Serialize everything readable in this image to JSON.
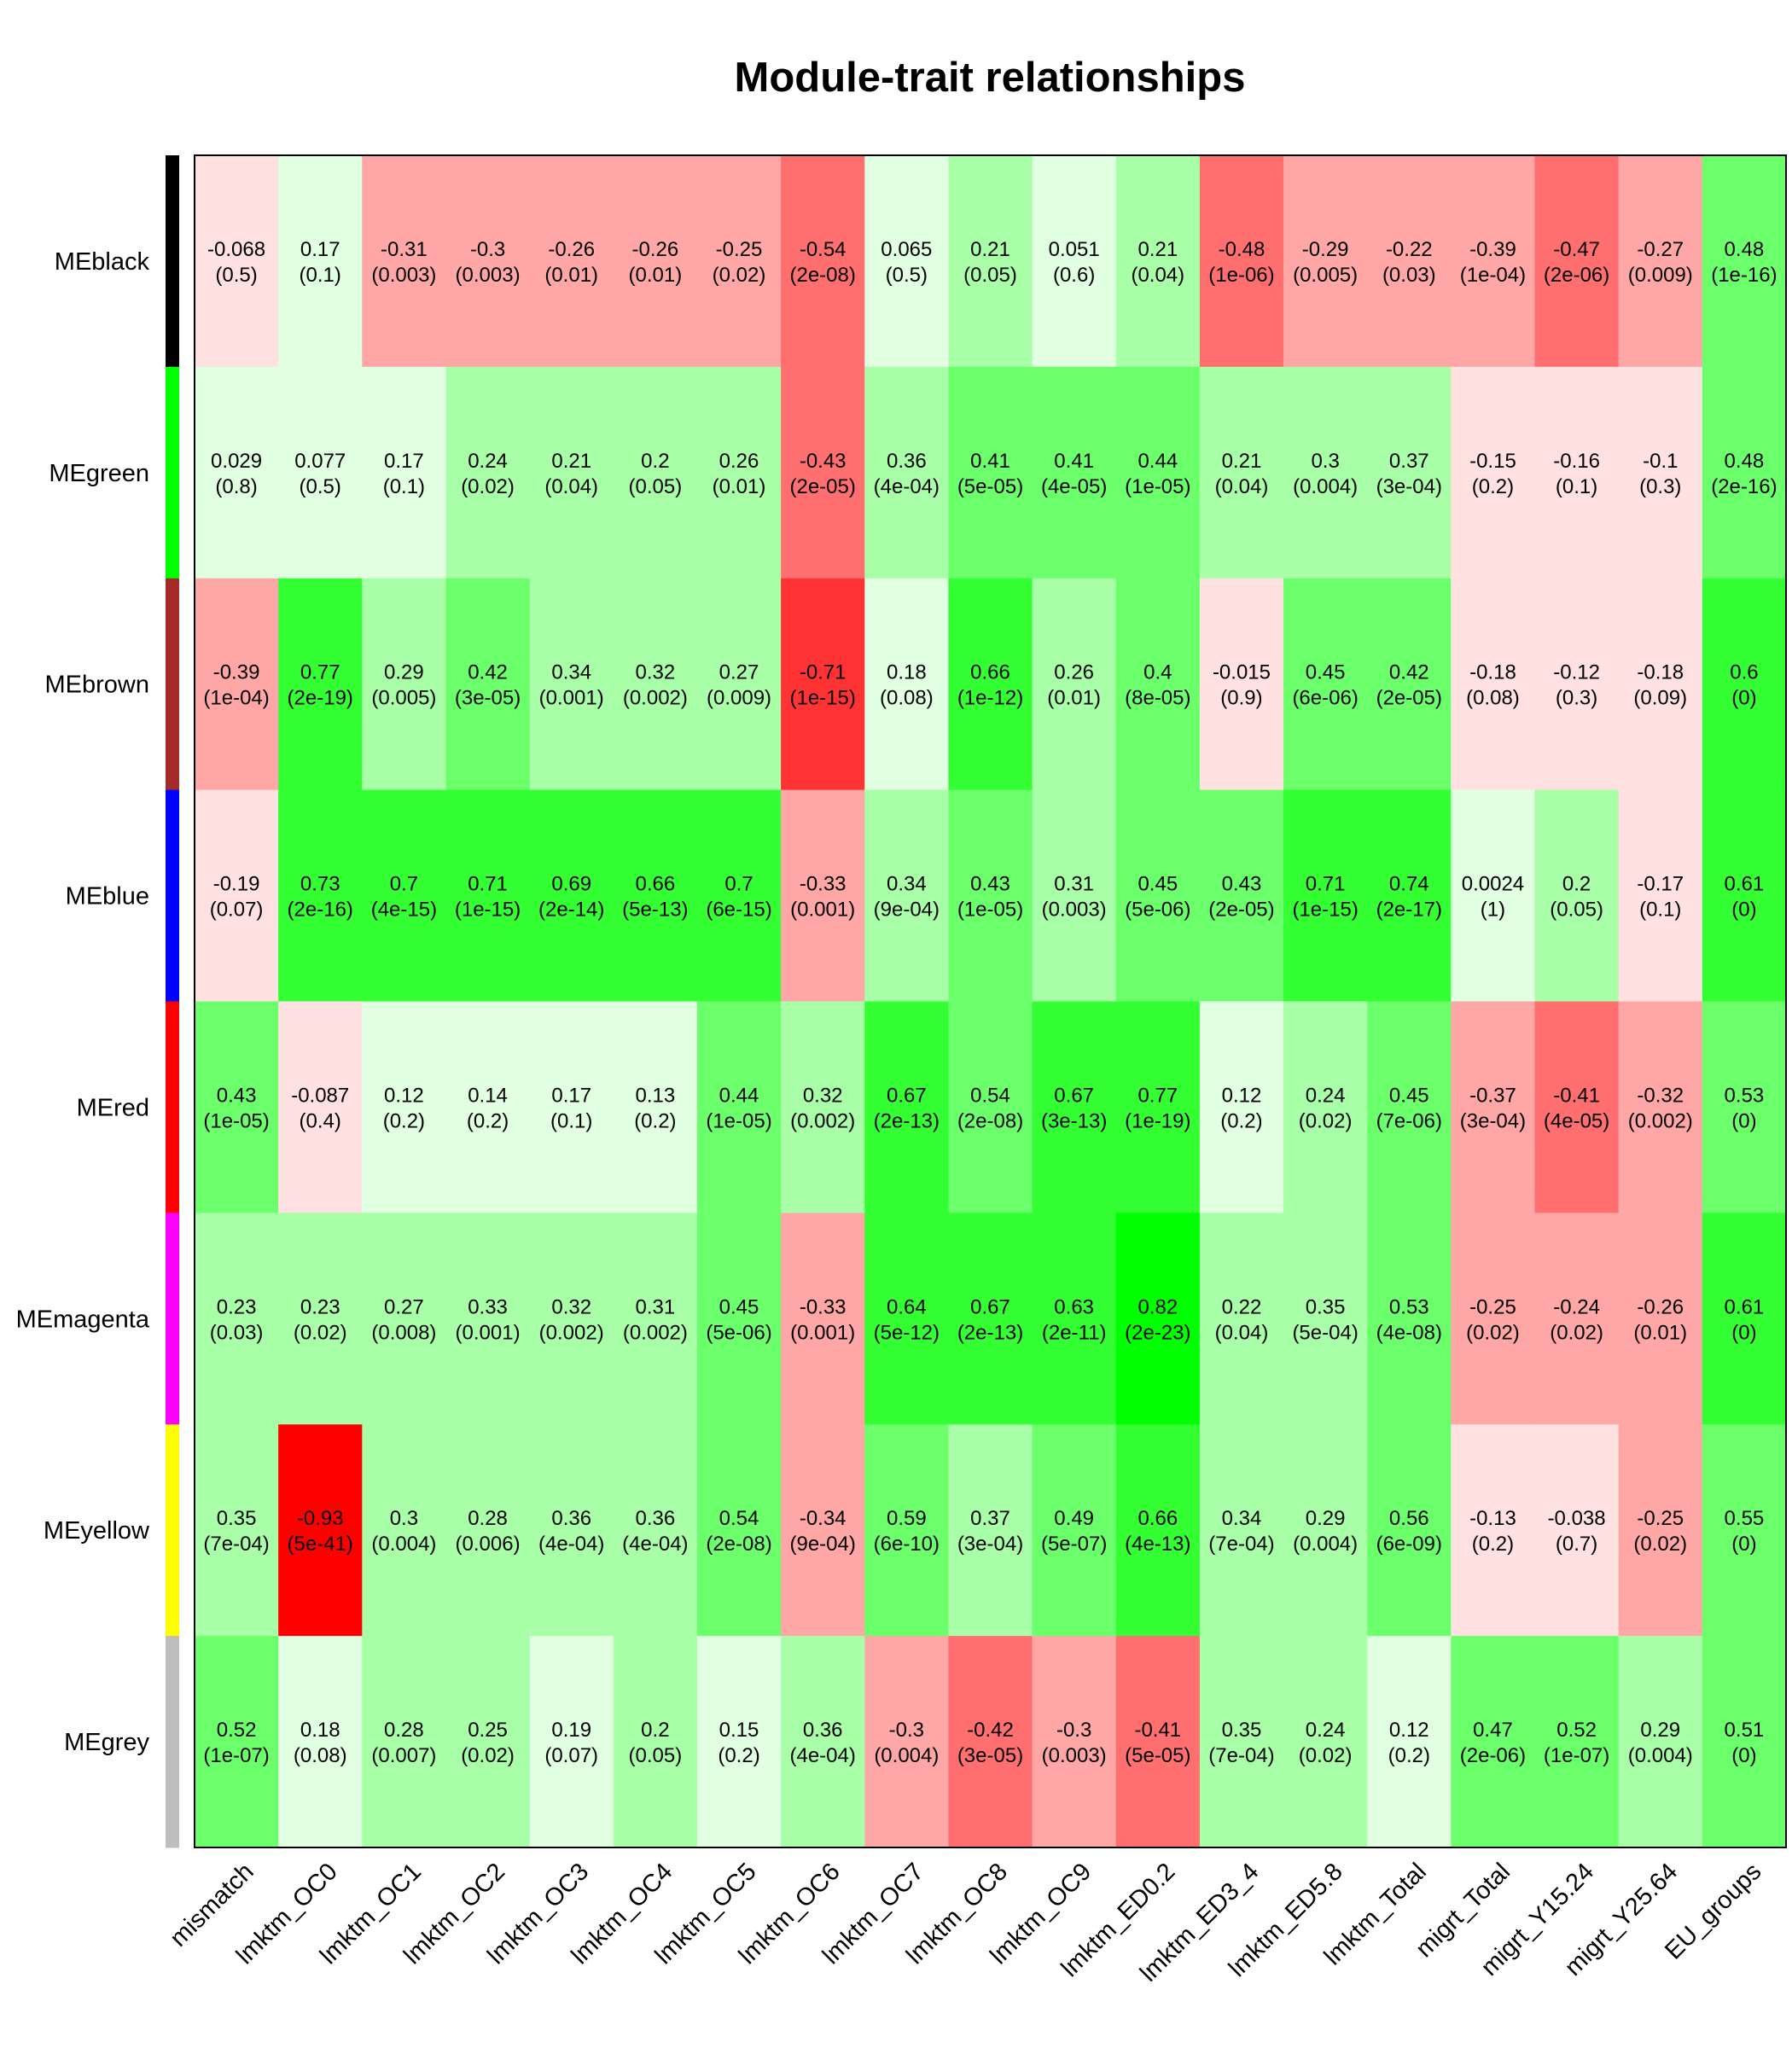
{
  "chart_data": {
    "type": "heatmap",
    "title": "Module-trait relationships",
    "xlabel": "",
    "ylabel": "",
    "columns": [
      "mismatch",
      "lmktm_OC0",
      "lmktm_OC1",
      "lmktm_OC2",
      "lmktm_OC3",
      "lmktm_OC4",
      "lmktm_OC5",
      "lmktm_OC6",
      "lmktm_OC7",
      "lmktm_OC8",
      "lmktm_OC9",
      "lmktm_ED0.2",
      "lmktm_ED3_4",
      "lmktm_ED5.8",
      "lmktm_Total",
      "migrt_Total",
      "migrt_Y15.24",
      "migrt_Y25.64",
      "EU_groups"
    ],
    "rows": [
      {
        "label": "MEblack",
        "module_color": "#000000",
        "values": [
          "-0.068",
          "0.17",
          "-0.31",
          "-0.3",
          "-0.26",
          "-0.26",
          "-0.25",
          "-0.54",
          "0.065",
          "0.21",
          "0.051",
          "0.21",
          "-0.48",
          "-0.29",
          "-0.22",
          "-0.39",
          "-0.47",
          "-0.27",
          "0.48"
        ],
        "pvalues": [
          "(0.5)",
          "(0.1)",
          "(0.003)",
          "(0.003)",
          "(0.01)",
          "(0.01)",
          "(0.02)",
          "(2e-08)",
          "(0.5)",
          "(0.05)",
          "(0.6)",
          "(0.04)",
          "(1e-06)",
          "(0.005)",
          "(0.03)",
          "(1e-04)",
          "(2e-06)",
          "(0.009)",
          "(1e-16)"
        ]
      },
      {
        "label": "MEgreen",
        "module_color": "#00ff00",
        "values": [
          "0.029",
          "0.077",
          "0.17",
          "0.24",
          "0.21",
          "0.2",
          "0.26",
          "-0.43",
          "0.36",
          "0.41",
          "0.41",
          "0.44",
          "0.21",
          "0.3",
          "0.37",
          "-0.15",
          "-0.16",
          "-0.1",
          "0.48"
        ],
        "pvalues": [
          "(0.8)",
          "(0.5)",
          "(0.1)",
          "(0.02)",
          "(0.04)",
          "(0.05)",
          "(0.01)",
          "(2e-05)",
          "(4e-04)",
          "(5e-05)",
          "(4e-05)",
          "(1e-05)",
          "(0.04)",
          "(0.004)",
          "(3e-04)",
          "(0.2)",
          "(0.1)",
          "(0.3)",
          "(2e-16)"
        ]
      },
      {
        "label": "MEbrown",
        "module_color": "#a52a2a",
        "values": [
          "-0.39",
          "0.77",
          "0.29",
          "0.42",
          "0.34",
          "0.32",
          "0.27",
          "-0.71",
          "0.18",
          "0.66",
          "0.26",
          "0.4",
          "-0.015",
          "0.45",
          "0.42",
          "-0.18",
          "-0.12",
          "-0.18",
          "0.6"
        ],
        "pvalues": [
          "(1e-04)",
          "(2e-19)",
          "(0.005)",
          "(3e-05)",
          "(0.001)",
          "(0.002)",
          "(0.009)",
          "(1e-15)",
          "(0.08)",
          "(1e-12)",
          "(0.01)",
          "(8e-05)",
          "(0.9)",
          "(6e-06)",
          "(2e-05)",
          "(0.08)",
          "(0.3)",
          "(0.09)",
          "(0)"
        ]
      },
      {
        "label": "MEblue",
        "module_color": "#0000ff",
        "values": [
          "-0.19",
          "0.73",
          "0.7",
          "0.71",
          "0.69",
          "0.66",
          "0.7",
          "-0.33",
          "0.34",
          "0.43",
          "0.31",
          "0.45",
          "0.43",
          "0.71",
          "0.74",
          "0.0024",
          "0.2",
          "-0.17",
          "0.61"
        ],
        "pvalues": [
          "(0.07)",
          "(2e-16)",
          "(4e-15)",
          "(1e-15)",
          "(2e-14)",
          "(5e-13)",
          "(6e-15)",
          "(0.001)",
          "(9e-04)",
          "(1e-05)",
          "(0.003)",
          "(5e-06)",
          "(2e-05)",
          "(1e-15)",
          "(2e-17)",
          "(1)",
          "(0.05)",
          "(0.1)",
          "(0)"
        ]
      },
      {
        "label": "MEred",
        "module_color": "#ff0000",
        "values": [
          "0.43",
          "-0.087",
          "0.12",
          "0.14",
          "0.17",
          "0.13",
          "0.44",
          "0.32",
          "0.67",
          "0.54",
          "0.67",
          "0.77",
          "0.12",
          "0.24",
          "0.45",
          "-0.37",
          "-0.41",
          "-0.32",
          "0.53"
        ],
        "pvalues": [
          "(1e-05)",
          "(0.4)",
          "(0.2)",
          "(0.2)",
          "(0.1)",
          "(0.2)",
          "(1e-05)",
          "(0.002)",
          "(2e-13)",
          "(2e-08)",
          "(3e-13)",
          "(1e-19)",
          "(0.2)",
          "(0.02)",
          "(7e-06)",
          "(3e-04)",
          "(4e-05)",
          "(0.002)",
          "(0)"
        ]
      },
      {
        "label": "MEmagenta",
        "module_color": "#ff00ff",
        "values": [
          "0.23",
          "0.23",
          "0.27",
          "0.33",
          "0.32",
          "0.31",
          "0.45",
          "-0.33",
          "0.64",
          "0.67",
          "0.63",
          "0.82",
          "0.22",
          "0.35",
          "0.53",
          "-0.25",
          "-0.24",
          "-0.26",
          "0.61"
        ],
        "pvalues": [
          "(0.03)",
          "(0.02)",
          "(0.008)",
          "(0.001)",
          "(0.002)",
          "(0.002)",
          "(5e-06)",
          "(0.001)",
          "(5e-12)",
          "(2e-13)",
          "(2e-11)",
          "(2e-23)",
          "(0.04)",
          "(5e-04)",
          "(4e-08)",
          "(0.02)",
          "(0.02)",
          "(0.01)",
          "(0)"
        ]
      },
      {
        "label": "MEyellow",
        "module_color": "#ffff00",
        "values": [
          "0.35",
          "-0.93",
          "0.3",
          "0.28",
          "0.36",
          "0.36",
          "0.54",
          "-0.34",
          "0.59",
          "0.37",
          "0.49",
          "0.66",
          "0.34",
          "0.29",
          "0.56",
          "-0.13",
          "-0.038",
          "-0.25",
          "0.55"
        ],
        "pvalues": [
          "(7e-04)",
          "(5e-41)",
          "(0.004)",
          "(0.006)",
          "(4e-04)",
          "(4e-04)",
          "(2e-08)",
          "(9e-04)",
          "(6e-10)",
          "(3e-04)",
          "(5e-07)",
          "(4e-13)",
          "(7e-04)",
          "(0.004)",
          "(6e-09)",
          "(0.2)",
          "(0.7)",
          "(0.02)",
          "(0)"
        ]
      },
      {
        "label": "MEgrey",
        "module_color": "#bebebe",
        "values": [
          "0.52",
          "0.18",
          "0.28",
          "0.25",
          "0.19",
          "0.2",
          "0.15",
          "0.36",
          "-0.3",
          "-0.42",
          "-0.3",
          "-0.41",
          "0.35",
          "0.24",
          "0.12",
          "0.47",
          "0.52",
          "0.29",
          "0.51"
        ],
        "pvalues": [
          "(1e-07)",
          "(0.08)",
          "(0.007)",
          "(0.02)",
          "(0.07)",
          "(0.05)",
          "(0.2)",
          "(4e-04)",
          "(0.004)",
          "(3e-05)",
          "(0.003)",
          "(5e-05)",
          "(7e-04)",
          "(0.02)",
          "(0.2)",
          "(2e-06)",
          "(1e-07)",
          "(0.004)",
          "(0)"
        ]
      }
    ],
    "color_scale": {
      "negative": "#ff0000",
      "zero": "#ffffff",
      "positive": "#00ff00",
      "bins": [
        {
          "min": -1.0,
          "max": -0.8,
          "color": "#ff0000"
        },
        {
          "min": -0.8,
          "max": -0.6,
          "color": "#ff3333"
        },
        {
          "min": -0.6,
          "max": -0.4,
          "color": "#ff6f6f"
        },
        {
          "min": -0.4,
          "max": -0.2,
          "color": "#ffa6a6"
        },
        {
          "min": -0.2,
          "max": 0.0,
          "color": "#ffe1e1"
        },
        {
          "min": 0.0,
          "max": 0.2,
          "color": "#e1ffe1"
        },
        {
          "min": 0.2,
          "max": 0.4,
          "color": "#a8ffa8"
        },
        {
          "min": 0.4,
          "max": 0.6,
          "color": "#6cff6c"
        },
        {
          "min": 0.6,
          "max": 0.8,
          "color": "#33ff33"
        },
        {
          "min": 0.8,
          "max": 1.0,
          "color": "#00ff00"
        }
      ]
    }
  }
}
